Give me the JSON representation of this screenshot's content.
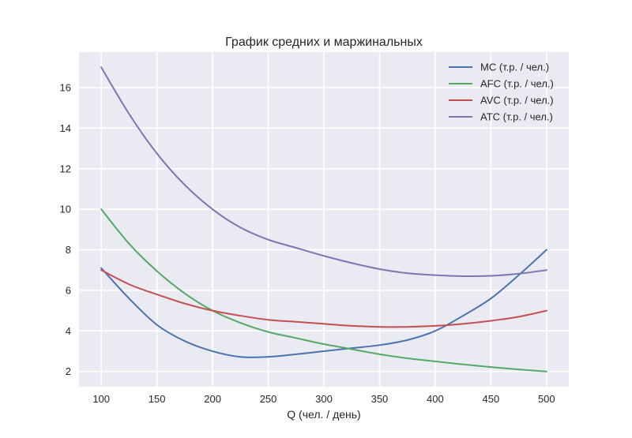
{
  "chart_data": {
    "type": "line",
    "title": "График средних и маржинальных",
    "xlabel": "Q (чел. / день)",
    "ylabel": "",
    "xlim": [
      80,
      520
    ],
    "ylim": [
      1.25,
      17.75
    ],
    "xticks": [
      100,
      150,
      200,
      250,
      300,
      350,
      400,
      450,
      500
    ],
    "yticks": [
      2,
      4,
      6,
      8,
      10,
      12,
      14,
      16
    ],
    "grid": true,
    "legend_position": "top-right",
    "x": [
      100,
      125,
      150,
      175,
      200,
      225,
      250,
      275,
      300,
      325,
      350,
      375,
      400,
      425,
      450,
      475,
      500
    ],
    "series": [
      {
        "name": "MC (т.р. / чел.)",
        "color": "#4c72b0",
        "values": [
          7.1,
          5.6,
          4.3,
          3.5,
          3.0,
          2.72,
          2.72,
          2.85,
          3.0,
          3.15,
          3.3,
          3.55,
          4.0,
          4.75,
          5.6,
          6.75,
          8.0
        ]
      },
      {
        "name": "AFC (т.р. / чел.)",
        "color": "#55a868",
        "values": [
          10.0,
          8.3,
          6.95,
          5.85,
          5.0,
          4.4,
          3.95,
          3.65,
          3.35,
          3.1,
          2.85,
          2.65,
          2.5,
          2.35,
          2.22,
          2.1,
          2.0
        ]
      },
      {
        "name": "AVC (т.р. / чел.)",
        "color": "#c44e52",
        "values": [
          7.0,
          6.3,
          5.8,
          5.35,
          5.0,
          4.75,
          4.55,
          4.45,
          4.35,
          4.25,
          4.2,
          4.2,
          4.25,
          4.35,
          4.5,
          4.7,
          5.0
        ]
      },
      {
        "name": "ATC (т.р. / чел.)",
        "color": "#8172b2",
        "values": [
          17.0,
          14.7,
          12.75,
          11.2,
          10.0,
          9.1,
          8.5,
          8.1,
          7.7,
          7.35,
          7.05,
          6.85,
          6.75,
          6.7,
          6.72,
          6.82,
          7.0
        ]
      }
    ]
  }
}
